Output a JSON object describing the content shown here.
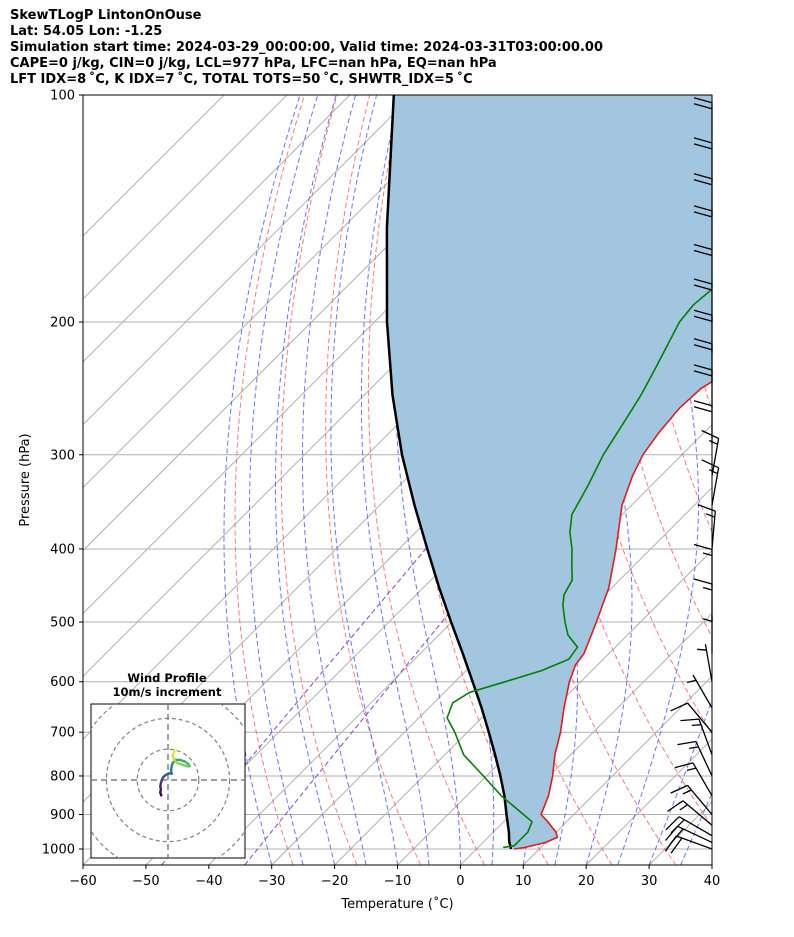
{
  "header": {
    "line1": "SkewTLogP LintonOnOuse",
    "line2": "Lat: 54.05   Lon: -1.25",
    "line3": "Simulation start time: 2024-03-29_00:00:00, Valid time: 2024-03-31T03:00:00.00",
    "line4": "CAPE=0 j/kg, CIN=0 j/kg, LCL=977 hPa, LFC=nan hPa, EQ=nan hPa",
    "line5": "LFT IDX=8 ˚C, K IDX=7 ˚C, TOTAL TOTS=50 ˚C, SHWTR_IDX=5 ˚C"
  },
  "colors": {
    "temperature": "#e41a1c",
    "dewpoint": "#008000",
    "parcel": "#000000",
    "cape_fill": "#a3c6e0",
    "dry_adiabat": "#ff6060",
    "moist_adiabat": "#4b5ef0",
    "mixing_ratio": "#8c3fd0",
    "isotherm": "#b0b0b0"
  },
  "chart_data": {
    "type": "line",
    "title": "",
    "xlabel": "Temperature (˚C)",
    "ylabel": "Pressure (hPa)",
    "xlim": [
      -60,
      40
    ],
    "ylim": [
      1050,
      100
    ],
    "y_scale": "log",
    "x_ticks": [
      "−60",
      "−50",
      "−40",
      "−30",
      "−20",
      "−10",
      "0",
      "10",
      "20",
      "30",
      "40"
    ],
    "y_ticks": [
      "100",
      "200",
      "300",
      "400",
      "500",
      "600",
      "700",
      "800",
      "900",
      "1000"
    ],
    "grid": true,
    "series": [
      {
        "name": "",
        "key": "temperature",
        "points": [
          [
            1000,
            6.0
          ],
          [
            995,
            7.5
          ],
          [
            980,
            10.0
          ],
          [
            965,
            11.0
          ],
          [
            950,
            10.0
          ],
          [
            920,
            7.0
          ],
          [
            900,
            4.8
          ],
          [
            850,
            3.0
          ],
          [
            800,
            0.5
          ],
          [
            750,
            -2.5
          ],
          [
            700,
            -5.2
          ],
          [
            650,
            -8.5
          ],
          [
            600,
            -11.8
          ],
          [
            570,
            -13.5
          ],
          [
            550,
            -14.0
          ],
          [
            500,
            -17.0
          ],
          [
            450,
            -20.5
          ],
          [
            400,
            -25.5
          ],
          [
            350,
            -31.5
          ],
          [
            320,
            -34.5
          ],
          [
            300,
            -36.2
          ],
          [
            280,
            -37.2
          ],
          [
            260,
            -37.8
          ],
          [
            245,
            -37.5
          ],
          [
            230,
            -35.5
          ],
          [
            220,
            -34.0
          ],
          [
            200,
            -32.0
          ],
          [
            180,
            -30.0
          ],
          [
            160,
            -29.0
          ],
          [
            150,
            -28.5
          ],
          [
            140,
            -28.0
          ],
          [
            130,
            -27.0
          ],
          [
            120,
            -24.5
          ],
          [
            110,
            -22.0
          ],
          [
            100,
            -20.0
          ]
        ]
      },
      {
        "name": "",
        "key": "dewpoint",
        "points": [
          [
            995,
            4.0
          ],
          [
            990,
            5.5
          ],
          [
            970,
            5.5
          ],
          [
            950,
            5.5
          ],
          [
            920,
            4.5
          ],
          [
            900,
            2.0
          ],
          [
            850,
            -4.5
          ],
          [
            800,
            -10.5
          ],
          [
            750,
            -17.0
          ],
          [
            700,
            -22.0
          ],
          [
            670,
            -25.5
          ],
          [
            640,
            -27.0
          ],
          [
            620,
            -26.0
          ],
          [
            600,
            -22.0
          ],
          [
            580,
            -18.0
          ],
          [
            560,
            -15.5
          ],
          [
            540,
            -16.0
          ],
          [
            520,
            -19.5
          ],
          [
            500,
            -22.0
          ],
          [
            475,
            -25.0
          ],
          [
            460,
            -26.5
          ],
          [
            440,
            -27.5
          ],
          [
            420,
            -30.0
          ],
          [
            400,
            -32.5
          ],
          [
            380,
            -35.5
          ],
          [
            360,
            -38.0
          ],
          [
            330,
            -40.0
          ],
          [
            300,
            -42.5
          ],
          [
            270,
            -44.5
          ],
          [
            250,
            -46.0
          ],
          [
            230,
            -48.0
          ],
          [
            200,
            -51.5
          ],
          [
            190,
            -52.0
          ],
          [
            180,
            -51.5
          ],
          [
            170,
            -50.5
          ],
          [
            160,
            -49.0
          ],
          [
            150,
            -48.0
          ],
          [
            140,
            -47.0
          ],
          [
            130,
            -46.0
          ],
          [
            120,
            -45.0
          ],
          [
            110,
            -44.0
          ],
          [
            100,
            -43.0
          ]
        ]
      },
      {
        "name": "",
        "key": "parcel",
        "points": [
          [
            1000,
            5.5
          ],
          [
            977,
            4.0
          ],
          [
            950,
            2.5
          ],
          [
            900,
            -0.7
          ],
          [
            850,
            -4.0
          ],
          [
            800,
            -7.8
          ],
          [
            750,
            -12.0
          ],
          [
            700,
            -16.6
          ],
          [
            650,
            -21.6
          ],
          [
            600,
            -27.2
          ],
          [
            550,
            -33.3
          ],
          [
            500,
            -40.1
          ],
          [
            450,
            -47.5
          ],
          [
            400,
            -55.5
          ],
          [
            350,
            -64.5
          ],
          [
            300,
            -74.5
          ],
          [
            250,
            -85.5
          ],
          [
            200,
            -98.0
          ],
          [
            150,
            -113.0
          ],
          [
            100,
            -133.0
          ]
        ]
      }
    ],
    "winds": [
      {
        "p": 1000,
        "speed_kt": 20,
        "dir": 290
      },
      {
        "p": 980,
        "speed_kt": 20,
        "dir": 295
      },
      {
        "p": 960,
        "speed_kt": 18,
        "dir": 300
      },
      {
        "p": 930,
        "speed_kt": 15,
        "dir": 310
      },
      {
        "p": 900,
        "speed_kt": 15,
        "dir": 320
      },
      {
        "p": 850,
        "speed_kt": 15,
        "dir": 330
      },
      {
        "p": 800,
        "speed_kt": 15,
        "dir": 335
      },
      {
        "p": 750,
        "speed_kt": 15,
        "dir": 340
      },
      {
        "p": 700,
        "speed_kt": 10,
        "dir": 320
      },
      {
        "p": 650,
        "speed_kt": 5,
        "dir": 330
      },
      {
        "p": 600,
        "speed_kt": 5,
        "dir": 350
      },
      {
        "p": 550,
        "speed_kt": 5,
        "dir": 0
      },
      {
        "p": 500,
        "speed_kt": 15,
        "dir": 0
      },
      {
        "p": 450,
        "speed_kt": 15,
        "dir": 0
      },
      {
        "p": 400,
        "speed_kt": 15,
        "dir": 5
      },
      {
        "p": 350,
        "speed_kt": 15,
        "dir": 10
      },
      {
        "p": 320,
        "speed_kt": 15,
        "dir": 10
      },
      {
        "p": 290,
        "speed_kt": 20,
        "dir": 0
      },
      {
        "p": 260,
        "speed_kt": 20,
        "dir": 0
      },
      {
        "p": 240,
        "speed_kt": 20,
        "dir": 0
      },
      {
        "p": 220,
        "speed_kt": 20,
        "dir": 0
      },
      {
        "p": 200,
        "speed_kt": 20,
        "dir": 0
      },
      {
        "p": 180,
        "speed_kt": 20,
        "dir": 0
      },
      {
        "p": 160,
        "speed_kt": 20,
        "dir": 0
      },
      {
        "p": 145,
        "speed_kt": 20,
        "dir": 0
      },
      {
        "p": 130,
        "speed_kt": 20,
        "dir": 0
      },
      {
        "p": 115,
        "speed_kt": 20,
        "dir": 0
      }
    ],
    "hodograph": {
      "title": "Wind Profile",
      "subtitle": "10m/s increment",
      "rings_ms": [
        10,
        20,
        30
      ],
      "range_ms": 25,
      "points": [
        [
          -2.2,
          -5.0
        ],
        [
          -2.5,
          -4.0
        ],
        [
          -2.3,
          -3.0
        ],
        [
          -2.5,
          -2.0
        ],
        [
          -2.3,
          -1.0
        ],
        [
          -2.0,
          0.0
        ],
        [
          -1.5,
          1.0
        ],
        [
          -0.5,
          1.8
        ],
        [
          0.5,
          2.2
        ],
        [
          1.2,
          2.0
        ],
        [
          1.0,
          3.0
        ],
        [
          1.2,
          4.5
        ],
        [
          1.5,
          5.5
        ],
        [
          2.5,
          6.5
        ],
        [
          4.0,
          6.5
        ],
        [
          5.5,
          6.0
        ],
        [
          6.8,
          5.0
        ],
        [
          7.0,
          4.5
        ],
        [
          6.0,
          4.5
        ],
        [
          4.5,
          5.0
        ],
        [
          3.0,
          5.5
        ],
        [
          2.0,
          6.5
        ],
        [
          1.5,
          8.0
        ],
        [
          2.0,
          9.0
        ],
        [
          2.5,
          9.5
        ]
      ]
    }
  }
}
